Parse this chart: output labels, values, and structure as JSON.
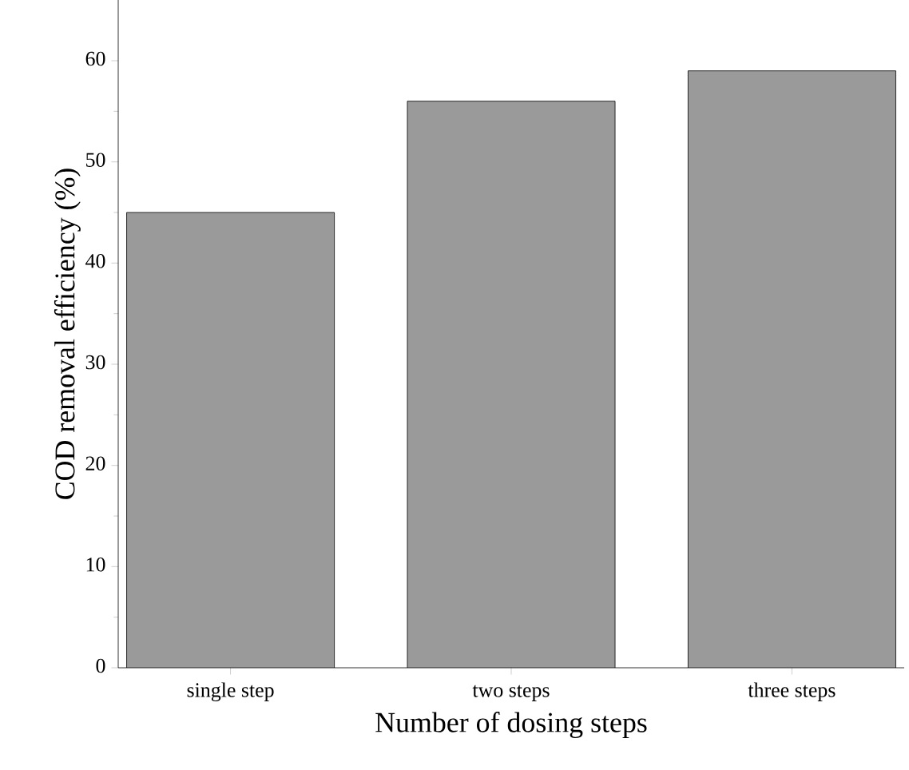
{
  "chart_data": {
    "type": "bar",
    "xlabel": "Number of dosing steps",
    "ylabel": "COD removal efficiency (%)",
    "categories": [
      "single step",
      "two steps",
      "three steps"
    ],
    "values": [
      45,
      56,
      59
    ],
    "color": "#9a9a9a",
    "ylim": [
      0,
      66
    ],
    "yticks": [
      0,
      10,
      20,
      30,
      40,
      50,
      60
    ],
    "grid": false
  }
}
